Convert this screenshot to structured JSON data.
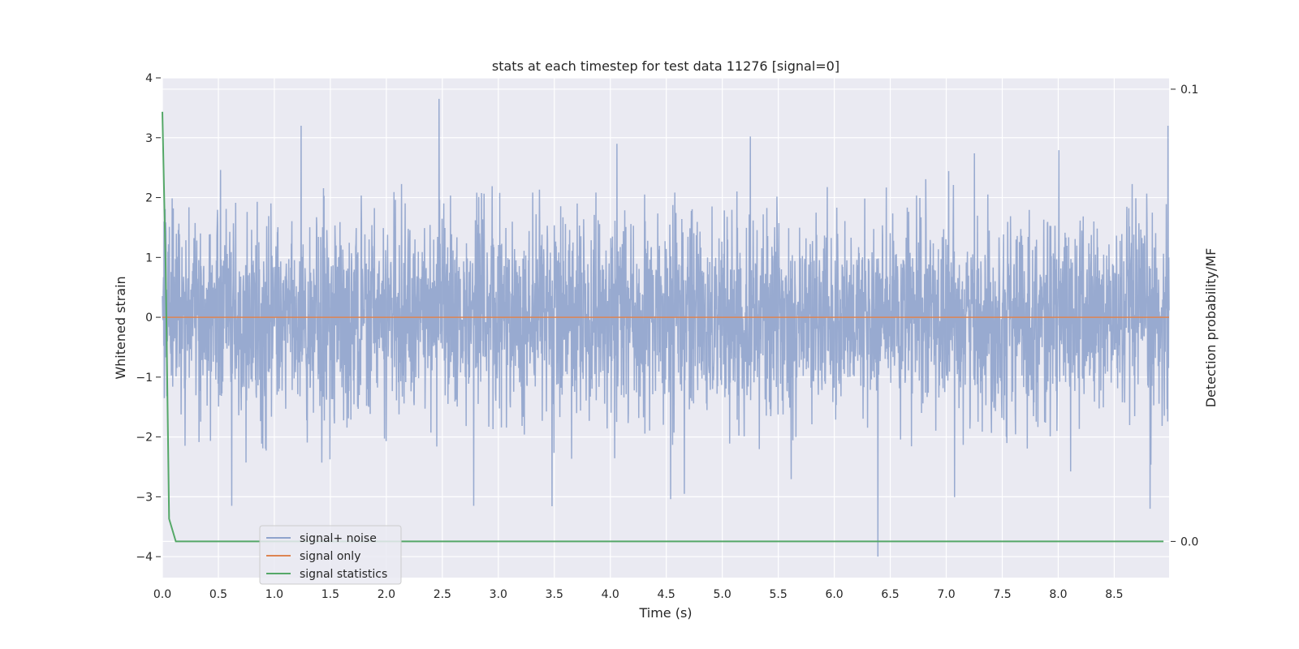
{
  "chart_data": {
    "type": "line",
    "title": "stats at each timestep for test data 11276 [signal=0]",
    "xlabel": "Time (s)",
    "ylabel": "Whitened strain",
    "y2label": "Detection probability/MF",
    "xlim": [
      0.0,
      8.99
    ],
    "ylim": [
      -4.35,
      4.0
    ],
    "y2lim": [
      -0.008,
      0.1025
    ],
    "x_ticks": [
      "0.0",
      "0.5",
      "1.0",
      "1.5",
      "2.0",
      "2.5",
      "3.0",
      "3.5",
      "4.0",
      "4.5",
      "5.0",
      "5.5",
      "6.0",
      "6.5",
      "7.0",
      "7.5",
      "8.0",
      "8.5"
    ],
    "y_ticks": [
      "4",
      "3",
      "2",
      "1",
      "0",
      "−1",
      "−2",
      "−3",
      "−4"
    ],
    "y2_ticks": [
      "0.1",
      "0.0"
    ],
    "grid": true,
    "legend_position": "lower-left",
    "series": [
      {
        "name": "signal+ noise",
        "color": "#8fa3cc",
        "description_values": "whitened noise, amplitude mostly within ±2.5, peaks up to about 3.65 near t=2.47 and down to about −4.0 near t=6.4",
        "peaks": [
          {
            "x": 0.62,
            "y": -3.15
          },
          {
            "x": 1.24,
            "y": 3.2
          },
          {
            "x": 2.47,
            "y": 3.65
          },
          {
            "x": 2.78,
            "y": -3.15
          },
          {
            "x": 4.66,
            "y": -2.95
          },
          {
            "x": 5.25,
            "y": 3.02
          },
          {
            "x": 6.39,
            "y": -4.0
          },
          {
            "x": 8.82,
            "y": -3.2
          },
          {
            "x": 8.98,
            "y": 3.2
          }
        ]
      },
      {
        "name": "signal only",
        "color": "#dd8452",
        "values_desc": "zero everywhere"
      },
      {
        "name": "signal statistics",
        "color": "#55a868",
        "axis": "right",
        "points": [
          {
            "x": 0.0,
            "y": 0.095
          },
          {
            "x": 0.03,
            "y": 0.06
          },
          {
            "x": 0.06,
            "y": 0.005
          },
          {
            "x": 0.12,
            "y": 0.0
          },
          {
            "x": 8.94,
            "y": 0.0
          }
        ]
      }
    ]
  }
}
